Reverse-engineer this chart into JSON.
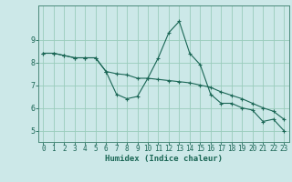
{
  "xlabel": "Humidex (Indice chaleur)",
  "x": [
    0,
    1,
    2,
    3,
    4,
    5,
    6,
    7,
    8,
    9,
    10,
    11,
    12,
    13,
    14,
    15,
    16,
    17,
    18,
    19,
    20,
    21,
    22,
    23
  ],
  "y_line1": [
    8.4,
    8.4,
    8.3,
    8.2,
    8.2,
    8.2,
    7.6,
    6.6,
    6.4,
    6.5,
    7.3,
    8.2,
    9.3,
    9.8,
    8.4,
    7.9,
    6.6,
    6.2,
    6.2,
    6.0,
    5.9,
    5.4,
    5.5,
    5.0
  ],
  "y_line2": [
    8.4,
    8.4,
    8.3,
    8.2,
    8.2,
    8.2,
    7.6,
    7.5,
    7.45,
    7.3,
    7.3,
    7.25,
    7.2,
    7.15,
    7.1,
    7.0,
    6.9,
    6.7,
    6.55,
    6.4,
    6.2,
    6.0,
    5.85,
    5.5
  ],
  "bg_color": "#cce8e8",
  "grid_color": "#99ccbb",
  "line_color": "#1a6655",
  "ylim": [
    4.5,
    10.5
  ],
  "xlim": [
    -0.5,
    23.5
  ],
  "yticks": [
    5,
    6,
    7,
    8,
    9
  ],
  "xticks": [
    0,
    1,
    2,
    3,
    4,
    5,
    6,
    7,
    8,
    9,
    10,
    11,
    12,
    13,
    14,
    15,
    16,
    17,
    18,
    19,
    20,
    21,
    22,
    23
  ]
}
